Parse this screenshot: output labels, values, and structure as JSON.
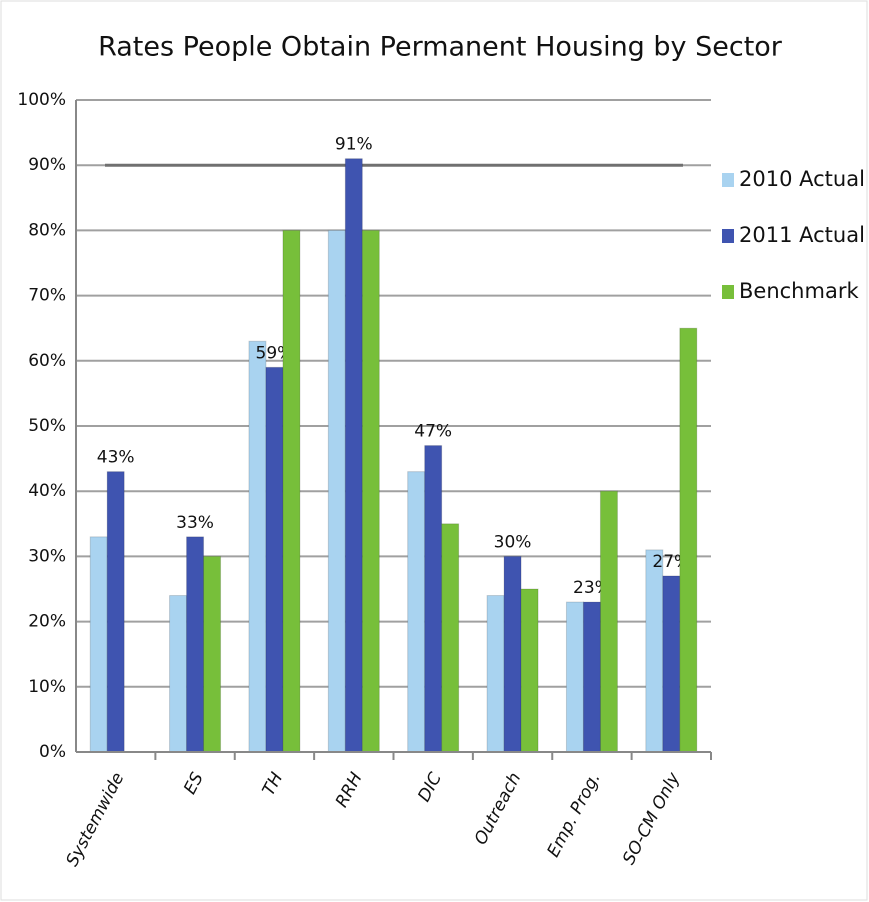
{
  "chart_data": {
    "type": "bar",
    "title": "Rates People Obtain Permanent Housing by Sector",
    "categories": [
      "Systemwide",
      "ES",
      "TH",
      "RRH",
      "DIC",
      "Outreach",
      "Emp. Prog.",
      "SO-CM Only"
    ],
    "series": [
      {
        "name": "2010 Actual",
        "color": "#a9d3f0",
        "values": [
          33,
          24,
          63,
          80,
          43,
          24,
          23,
          31
        ]
      },
      {
        "name": "2011 Actual",
        "color": "#3f54b0",
        "values": [
          43,
          33,
          59,
          91,
          47,
          30,
          23,
          27
        ],
        "value_labels": [
          "43%",
          "33%",
          "59%",
          "91%",
          "47%",
          "30%",
          "23%",
          "27%"
        ]
      },
      {
        "name": "Benchmark",
        "color": "#77bf3a",
        "values": [
          null,
          30,
          80,
          80,
          35,
          25,
          40,
          65
        ]
      }
    ],
    "reference_line": 90,
    "ylim": [
      0,
      100
    ],
    "yticks": [
      {
        "value": 0,
        "label": "0%"
      },
      {
        "value": 10,
        "label": "10%"
      },
      {
        "value": 20,
        "label": "20%"
      },
      {
        "value": 30,
        "label": "30%"
      },
      {
        "value": 40,
        "label": "40%"
      },
      {
        "value": 50,
        "label": "50%"
      },
      {
        "value": 60,
        "label": "60%"
      },
      {
        "value": 70,
        "label": "70%"
      },
      {
        "value": 80,
        "label": "80%"
      },
      {
        "value": 90,
        "label": "90%"
      },
      {
        "value": 100,
        "label": "100%"
      }
    ],
    "grid": true,
    "legend": "right"
  }
}
